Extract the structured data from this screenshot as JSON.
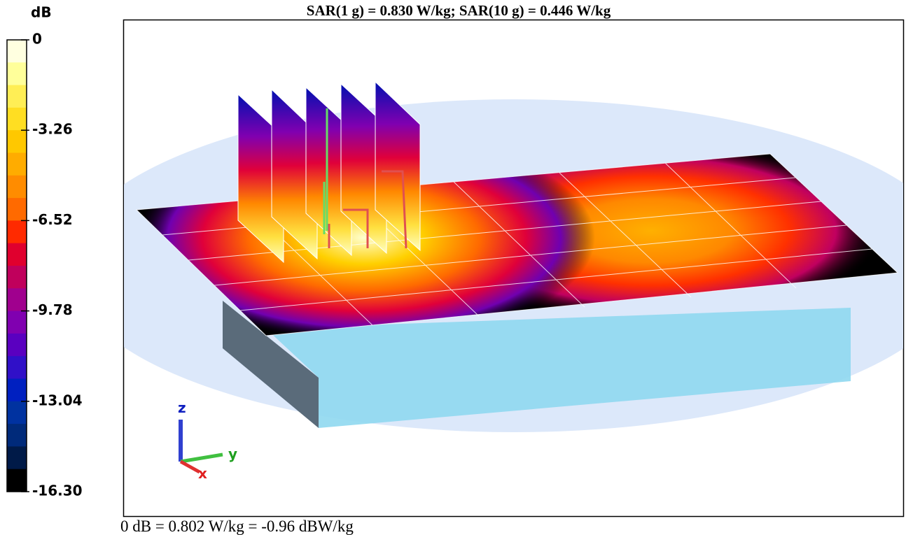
{
  "header": {
    "title": "SAR(1 g) = 0.830 W/kg; SAR(10 g) = 0.446 W/kg"
  },
  "colorbar": {
    "unit": "dB",
    "range": [
      -16.3,
      0
    ],
    "ticks": [
      0,
      -3.26,
      -6.52,
      -9.78,
      -13.04,
      {
        "value": -16.3,
        "label": "-16.30"
      }
    ]
  },
  "axes_triad": {
    "z": "z",
    "y": "y",
    "x": "x"
  },
  "footer": {
    "text": "0 dB = 0.802 W/kg = -0.96 dBW/kg"
  }
}
